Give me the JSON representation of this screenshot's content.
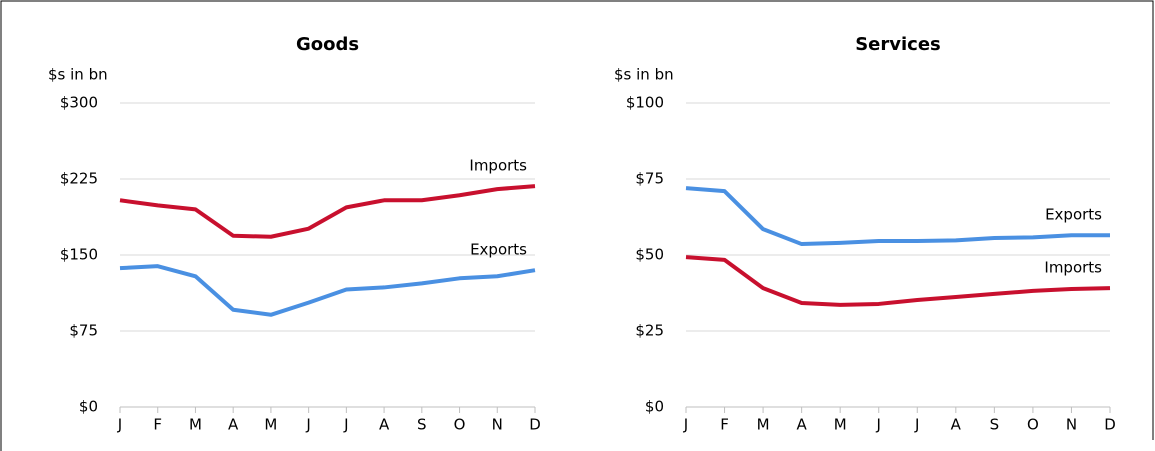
{
  "chart_data": [
    {
      "type": "line",
      "title": "Goods",
      "y_label": "$s in bn",
      "categories": [
        "J",
        "F",
        "M",
        "A",
        "M",
        "J",
        "J",
        "A",
        "S",
        "O",
        "N",
        "D"
      ],
      "series": [
        {
          "name": "Imports",
          "color": "#c8102e",
          "values": [
            204,
            199,
            195,
            169,
            168,
            176,
            197,
            204,
            204,
            209,
            215,
            218
          ]
        },
        {
          "name": "Exports",
          "color": "#4a90e2",
          "values": [
            137,
            139,
            129,
            96,
            91,
            103,
            116,
            118,
            122,
            127,
            129,
            135
          ]
        }
      ],
      "ylim": [
        0,
        300
      ],
      "yticks": [
        {
          "value": 0,
          "label": "$0"
        },
        {
          "value": 75,
          "label": "$75"
        },
        {
          "value": 150,
          "label": "$150"
        },
        {
          "value": 225,
          "label": "$225"
        },
        {
          "value": 300,
          "label": "$300"
        }
      ],
      "grid": true
    },
    {
      "type": "line",
      "title": "Services",
      "y_label": "$s in bn",
      "categories": [
        "J",
        "F",
        "M",
        "A",
        "M",
        "J",
        "J",
        "A",
        "S",
        "O",
        "N",
        "D"
      ],
      "series": [
        {
          "name": "Exports",
          "color": "#4a90e2",
          "values": [
            72,
            71,
            58.5,
            53.6,
            54,
            54.6,
            54.6,
            54.8,
            55.6,
            55.8,
            56.5,
            56.5
          ]
        },
        {
          "name": "Imports",
          "color": "#c8102e",
          "values": [
            49.3,
            48.4,
            39.1,
            34.2,
            33.6,
            33.9,
            35.2,
            36.2,
            37.2,
            38.2,
            38.8,
            39.1
          ]
        }
      ],
      "ylim": [
        0,
        100
      ],
      "yticks": [
        {
          "value": 0,
          "label": "$0"
        },
        {
          "value": 25,
          "label": "$25"
        },
        {
          "value": 50,
          "label": "$50"
        },
        {
          "value": 75,
          "label": "$75"
        },
        {
          "value": 100,
          "label": "$100"
        }
      ],
      "grid": true
    }
  ]
}
